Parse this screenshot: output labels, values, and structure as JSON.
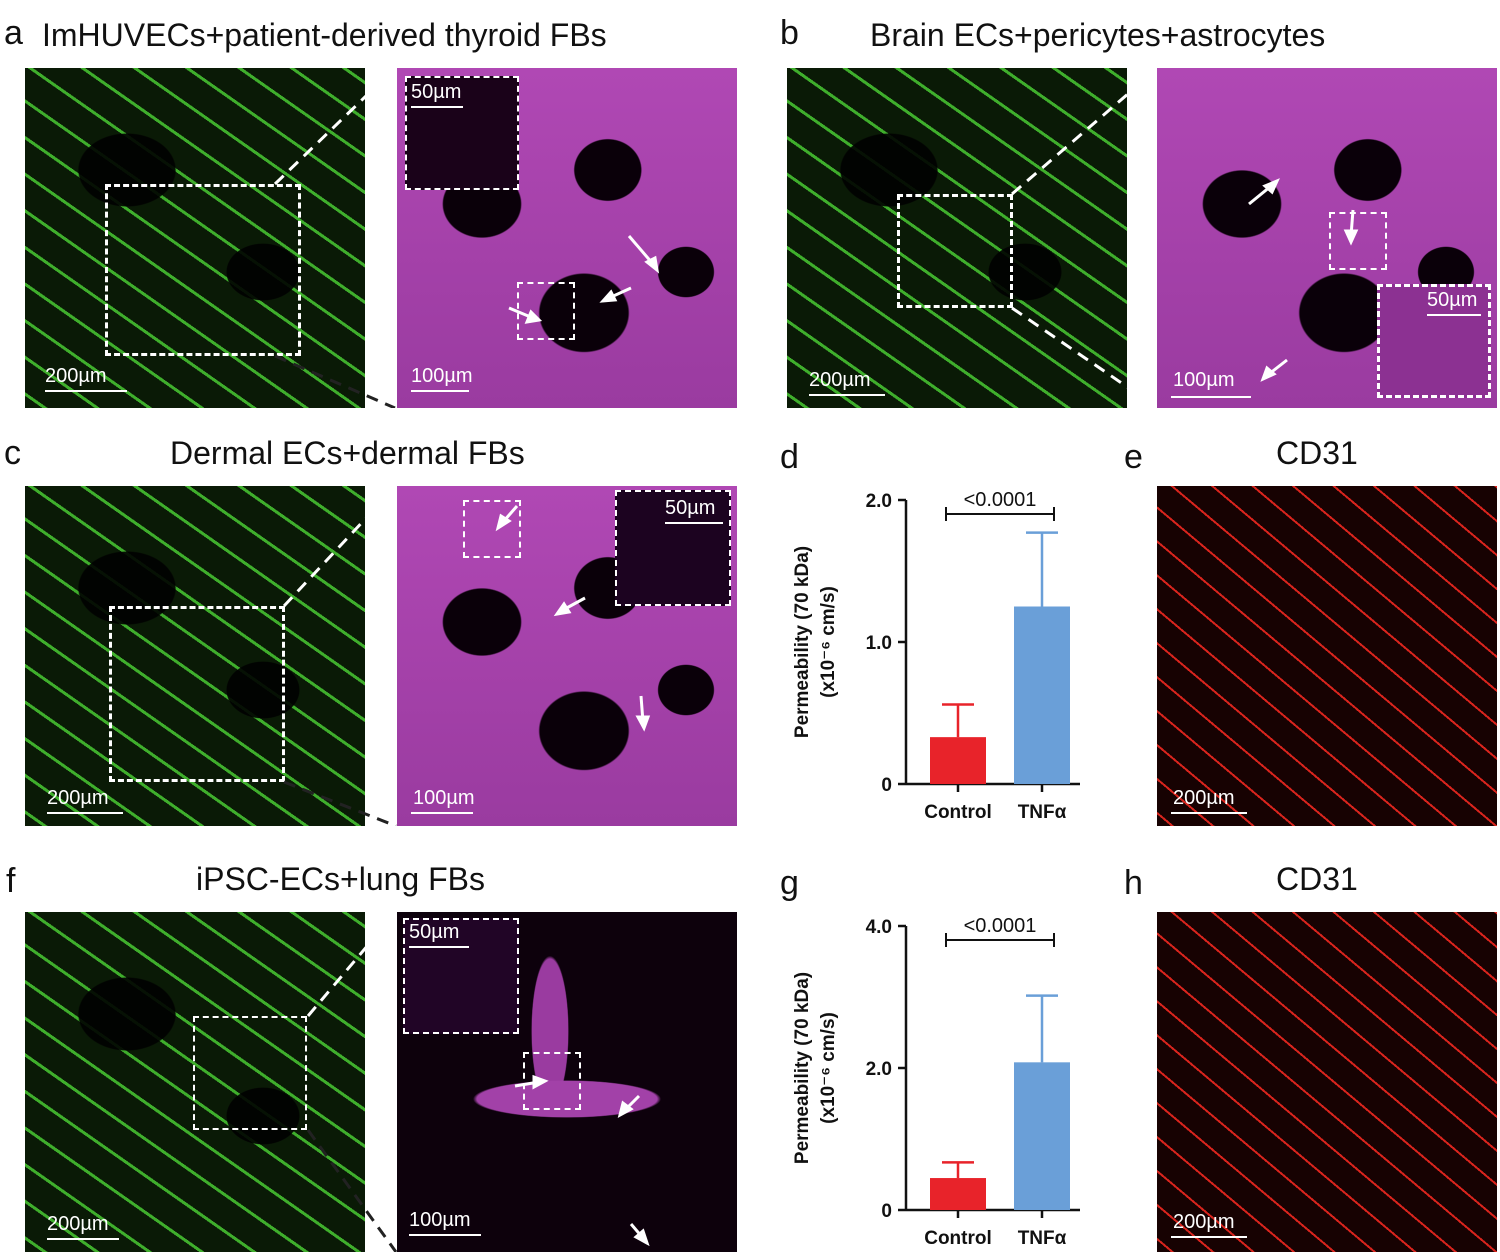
{
  "panels": {
    "a": {
      "label": "a",
      "title": "ImHUVECs+patient-derived thyroid FBs",
      "scale_main": "200µm",
      "scale_zoom": "100µm",
      "scale_inset": "50µm"
    },
    "b": {
      "label": "b",
      "title": "Brain ECs+pericytes+astrocytes",
      "scale_main": "200µm",
      "scale_zoom": "100µm",
      "scale_inset": "50µm"
    },
    "c": {
      "label": "c",
      "title": "Dermal ECs+dermal FBs",
      "scale_main": "200µm",
      "scale_zoom": "100µm",
      "scale_inset": "50µm"
    },
    "d": {
      "label": "d"
    },
    "e": {
      "label": "e",
      "title": "CD31",
      "scale_main": "200µm"
    },
    "f": {
      "label": "f",
      "title": "iPSC-ECs+lung FBs",
      "scale_main": "200µm",
      "scale_zoom": "100µm",
      "scale_inset": "50µm"
    },
    "g": {
      "label": "g"
    },
    "h": {
      "label": "h",
      "title": "CD31",
      "scale_main": "200µm"
    }
  },
  "colors": {
    "control": "#e8232a",
    "tnf": "#6a9fd8",
    "green": "#3fae2c",
    "magenta": "#a241a8",
    "red": "#d8241d"
  },
  "chart_data": [
    {
      "type": "bar",
      "panel": "d",
      "categories": [
        "Control",
        "TNFα"
      ],
      "values": [
        0.33,
        1.25
      ],
      "errors": [
        0.23,
        0.52
      ],
      "ylabel_line1": "Permeability (70 kDa)",
      "ylabel_line2": "(x10⁻⁶ cm/s)",
      "ylim": [
        0,
        2.0
      ],
      "yticks": [
        0,
        1.0,
        2.0
      ],
      "ytick_labels": [
        "0",
        "1.0",
        "2.0"
      ],
      "significance": "<0.0001"
    },
    {
      "type": "bar",
      "panel": "g",
      "categories": [
        "Control",
        "TNFα"
      ],
      "values": [
        0.45,
        2.08
      ],
      "errors": [
        0.22,
        0.94
      ],
      "ylabel_line1": "Permeability (70 kDa)",
      "ylabel_line2": "(x10⁻⁶ cm/s)",
      "ylim": [
        0,
        4.0
      ],
      "yticks": [
        0,
        2.0,
        4.0
      ],
      "ytick_labels": [
        "0",
        "2.0",
        "4.0"
      ],
      "significance": "<0.0001"
    }
  ]
}
